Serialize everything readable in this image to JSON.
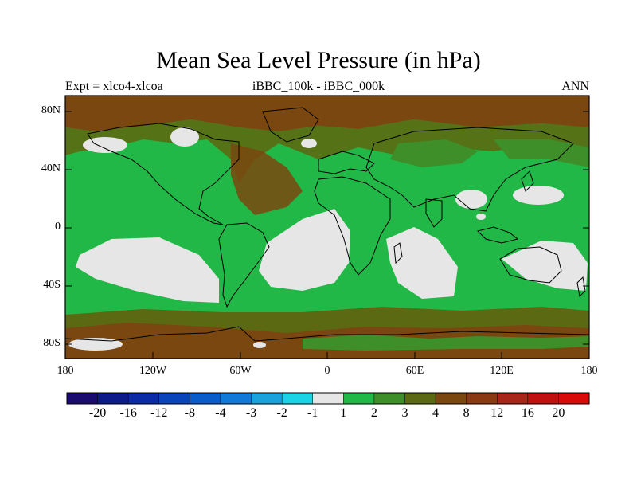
{
  "map": {
    "title": "Mean Sea Level Pressure (in hPa)",
    "left_label": "Expt = xlco4-xlcoa",
    "center_label": "iBBC_100k - iBBC_000k",
    "right_label": "ANN",
    "lat_ticks": [
      "80N",
      "40N",
      "0",
      "40S",
      "80S"
    ],
    "lon_ticks": [
      "180",
      "120W",
      "60W",
      "0",
      "60E",
      "120E",
      "180"
    ],
    "colors": {
      "light_green": "#22b847",
      "mid_green": "#3e8e2a",
      "olive": "#5b6a12",
      "brown": "#7a4710",
      "gray": "#e6e6e6"
    }
  },
  "colorbar": {
    "colors": [
      "#1a0c6e",
      "#0d1a8a",
      "#0a2aa6",
      "#0a44bb",
      "#0a5ccb",
      "#117ad8",
      "#1aa2dd",
      "#1ad4e6",
      "#e6e6e6",
      "#22b847",
      "#3e8e2a",
      "#5b6a12",
      "#7a4710",
      "#8a3a12",
      "#a8251a",
      "#c01010",
      "#d80a0a"
    ],
    "labels": [
      "-20",
      "-16",
      "-12",
      "-8",
      "-4",
      "-3",
      "-2",
      "-1",
      "1",
      "2",
      "3",
      "4",
      "8",
      "12",
      "16",
      "20"
    ]
  }
}
